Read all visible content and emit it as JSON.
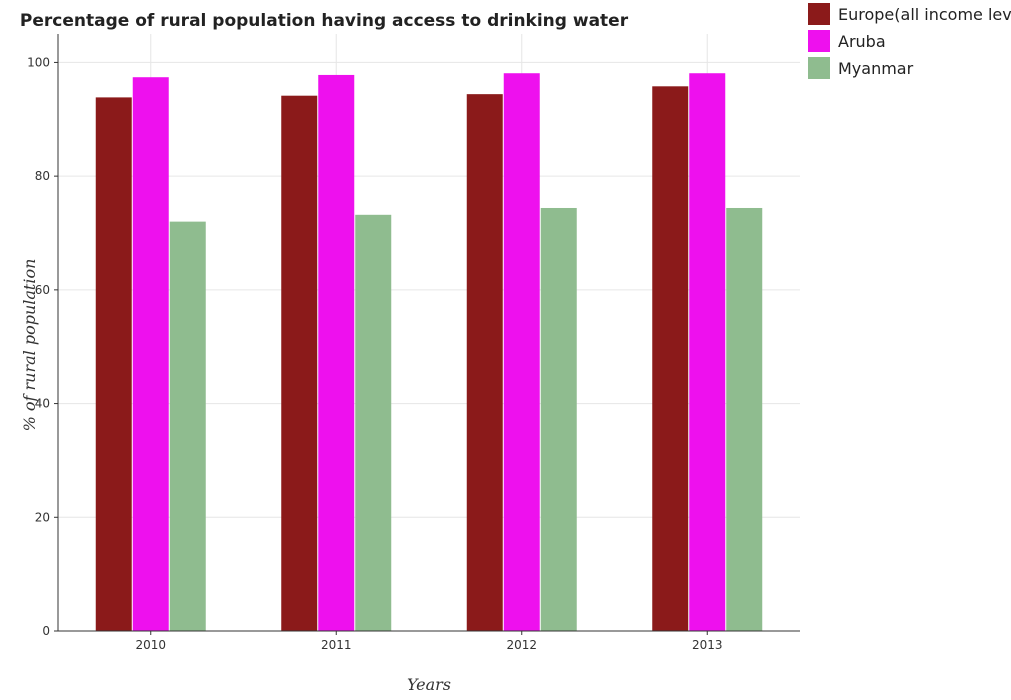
{
  "chart_data": {
    "type": "bar",
    "title": "Percentage of rural population having access to drinking water",
    "xlabel": "Years",
    "ylabel": "% of rural population",
    "categories": [
      "2010",
      "2011",
      "2012",
      "2013"
    ],
    "series": [
      {
        "name": "Europe(all income levels)",
        "color": "#8b1a1a",
        "values": [
          93.85,
          94.15,
          94.42,
          95.8
        ]
      },
      {
        "name": "Aruba",
        "color": "#ee10ee",
        "values": [
          97.4,
          97.8,
          98.1,
          98.1
        ]
      },
      {
        "name": "Myanmar",
        "color": "#8fbc8f",
        "values": [
          72.0,
          73.2,
          74.4,
          74.4
        ]
      }
    ],
    "ylim": [
      0,
      105
    ],
    "yticks": [
      0,
      20,
      40,
      60,
      80,
      100
    ],
    "grid": true,
    "legend_position": "top-right"
  }
}
